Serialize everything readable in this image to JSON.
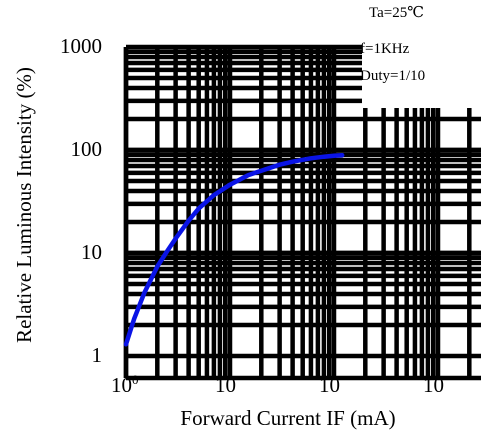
{
  "chart_data": {
    "type": "line",
    "xlabel": "Forward Current IF (mA)",
    "ylabel": "Relative Luminous Intensity (%)",
    "x_scale": "log",
    "y_scale": "log",
    "xlim": [
      1,
      1000
    ],
    "ylim": [
      1,
      1000
    ],
    "grid": true,
    "x_ticks": [
      {
        "value": 1,
        "base": "10",
        "exp": "0"
      },
      {
        "value": 10,
        "base": "10",
        "exp": ""
      },
      {
        "value": 100,
        "base": "10",
        "exp": ""
      },
      {
        "value": 1000,
        "base": "10",
        "exp": ""
      }
    ],
    "y_ticks": [
      {
        "value": 1,
        "label": "1"
      },
      {
        "value": 10,
        "label": "10"
      },
      {
        "value": 100,
        "label": "100"
      },
      {
        "value": 1000,
        "label": "1000"
      }
    ],
    "annotations": [
      "Ta=25℃",
      "f=1KHz",
      "Duty=1/10"
    ],
    "series": [
      {
        "color": "#0a14e6",
        "points": [
          [
            1.0,
            1.3
          ],
          [
            1.2,
            2.3
          ],
          [
            1.5,
            4.1
          ],
          [
            2,
            7.4
          ],
          [
            2.5,
            10.5
          ],
          [
            3,
            13.8
          ],
          [
            4,
            20.6
          ],
          [
            5,
            27
          ],
          [
            7,
            36.5
          ],
          [
            10,
            46
          ],
          [
            15,
            57
          ],
          [
            20,
            63
          ],
          [
            30,
            72
          ],
          [
            40,
            77
          ],
          [
            60,
            83
          ],
          [
            80,
            86
          ],
          [
            100,
            88
          ],
          [
            120,
            89
          ]
        ]
      }
    ]
  }
}
